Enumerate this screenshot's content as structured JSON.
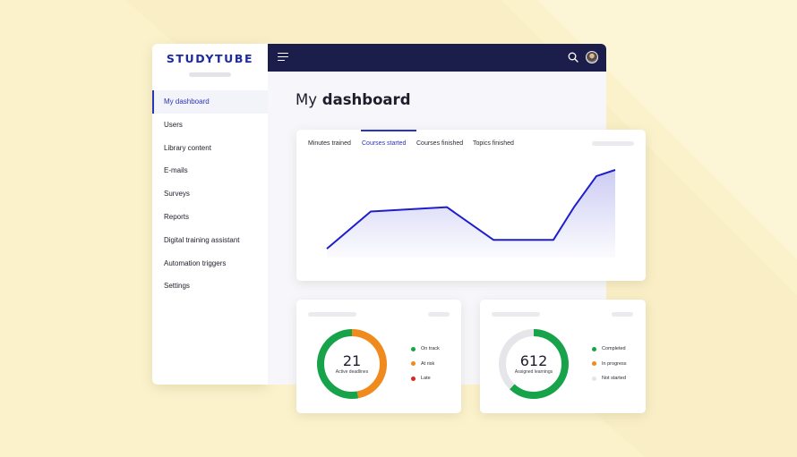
{
  "colors": {
    "background": "#fbf2cc",
    "brand": "#1f2a9e",
    "topbar": "#1b1d4a",
    "accent": "#2b35b8",
    "on_track": "#17a34a",
    "at_risk": "#f08a1c",
    "late": "#dc2626",
    "not_started": "#e6e6ea"
  },
  "sidebar": {
    "logo": "STUDYTUBE",
    "items": [
      {
        "label": "My dashboard",
        "active": true
      },
      {
        "label": "Users"
      },
      {
        "label": "Library content"
      },
      {
        "label": "E-mails"
      },
      {
        "label": "Surveys"
      },
      {
        "label": "Reports"
      },
      {
        "label": "Digital training assistant"
      },
      {
        "label": "Automation triggers"
      },
      {
        "label": "Settings"
      }
    ]
  },
  "topbar": {
    "icons": [
      "menu-icon",
      "search-icon",
      "avatar"
    ]
  },
  "page": {
    "title_light": "My",
    "title_bold": "dashboard"
  },
  "chart_card": {
    "tabs": [
      {
        "label": "Minutes trained"
      },
      {
        "label": "Courses started",
        "active": true
      },
      {
        "label": "Courses finished"
      },
      {
        "label": "Topics finished"
      }
    ]
  },
  "chart_data": {
    "type": "area",
    "x": [
      0,
      1,
      2,
      3,
      4,
      5,
      6,
      7
    ],
    "values": [
      10,
      52,
      57,
      20,
      20,
      57,
      92,
      99
    ],
    "ylim": [
      0,
      100
    ],
    "title": "",
    "xlabel": "",
    "ylabel": ""
  },
  "deadlines_card": {
    "value": "21",
    "label": "Active deadlines",
    "segments": [
      {
        "name": "On track",
        "fraction": 0.53
      },
      {
        "name": "At risk",
        "fraction": 0.47
      },
      {
        "name": "Late",
        "fraction": 0
      }
    ],
    "legend": [
      {
        "label": "On track",
        "color": "#17a34a"
      },
      {
        "label": "At risk",
        "color": "#f08a1c"
      },
      {
        "label": "Late",
        "color": "#dc2626"
      }
    ]
  },
  "learnings_card": {
    "value": "612",
    "label": "Assigned learnings",
    "segments": [
      {
        "name": "Completed",
        "fraction": 0.62
      },
      {
        "name": "In progress",
        "fraction": 0
      },
      {
        "name": "Not started",
        "fraction": 0.38
      }
    ],
    "legend": [
      {
        "label": "Completed",
        "color": "#17a34a"
      },
      {
        "label": "In progress",
        "color": "#f08a1c"
      },
      {
        "label": "Not started",
        "color": "#e6e6ea"
      }
    ]
  }
}
